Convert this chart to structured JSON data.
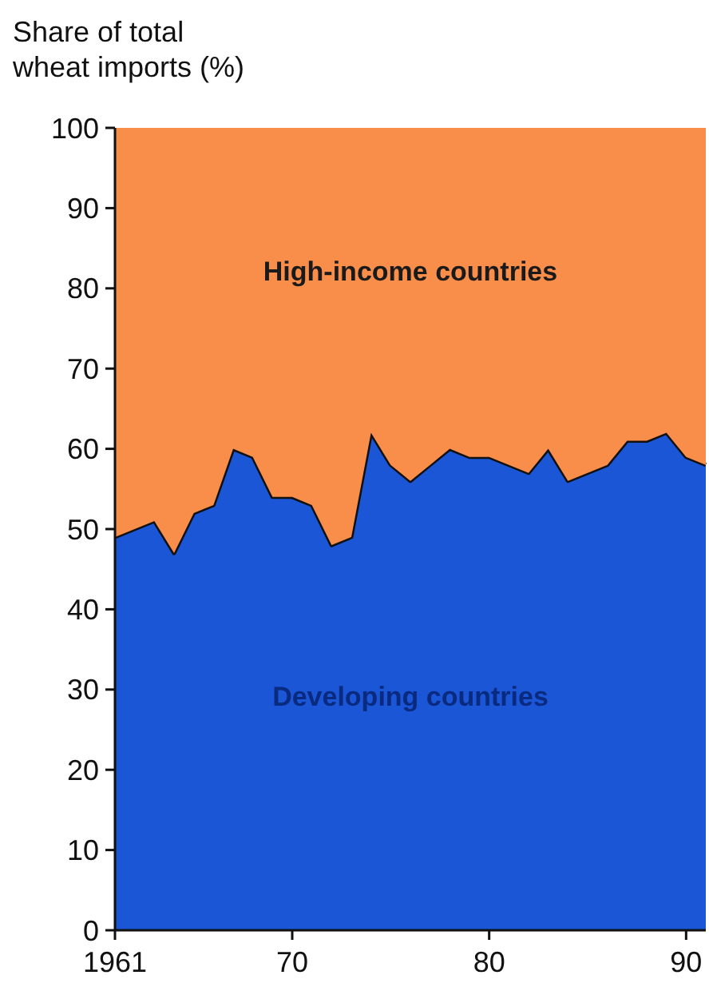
{
  "chart_data": {
    "type": "area",
    "stacked": true,
    "ylabel": "Share of total\nwheat imports (%)",
    "x": [
      1961,
      1962,
      1963,
      1964,
      1965,
      1966,
      1967,
      1968,
      1969,
      1970,
      1971,
      1972,
      1973,
      1974,
      1975,
      1976,
      1977,
      1978,
      1979,
      1980,
      1981,
      1982,
      1983,
      1984,
      1985,
      1986,
      1987,
      1988,
      1989,
      1990,
      1991
    ],
    "series": [
      {
        "name": "Developing countries",
        "color": "#1a56d6",
        "values": [
          49,
          50,
          51,
          47,
          52,
          53,
          60,
          59,
          54,
          54,
          53,
          48,
          49,
          62,
          58,
          56,
          58,
          60,
          59,
          59,
          58,
          57,
          60,
          56,
          57,
          58,
          61,
          61,
          62,
          59,
          58
        ]
      },
      {
        "name": "High-income countries",
        "color": "#f98d4a",
        "values": [
          51,
          50,
          49,
          53,
          48,
          47,
          40,
          41,
          46,
          46,
          47,
          52,
          51,
          38,
          42,
          44,
          42,
          40,
          41,
          41,
          42,
          43,
          40,
          44,
          43,
          42,
          39,
          39,
          38,
          41,
          42
        ]
      }
    ],
    "xlim": [
      1961,
      1991
    ],
    "xticks": [
      1961,
      {
        "value": 1970,
        "label": "70"
      },
      {
        "value": 1980,
        "label": "80"
      },
      {
        "value": 1990,
        "label": "90"
      }
    ],
    "ylim": [
      0,
      100
    ],
    "yticks": [
      0,
      10,
      20,
      30,
      40,
      50,
      60,
      70,
      80,
      90,
      100
    ],
    "grid": false
  }
}
